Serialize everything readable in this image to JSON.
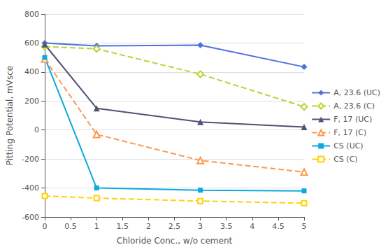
{
  "chart_data": {
    "type": "line",
    "xlabel": "Chloride Conc., w/o cement",
    "ylabel": "Pitting Potential, mVsce",
    "xlim": [
      0,
      5
    ],
    "ylim": [
      -600,
      800
    ],
    "xticks": [
      0,
      0.5,
      1,
      1.5,
      2,
      2.5,
      3,
      3.5,
      4,
      4.5,
      5
    ],
    "yticks": [
      -600,
      -400,
      -200,
      0,
      200,
      400,
      600,
      800
    ],
    "grid": true,
    "legend": "right",
    "series": [
      {
        "name": "A, 23.6 (UC)",
        "x": [
          0,
          1,
          3,
          5
        ],
        "values": [
          600,
          580,
          585,
          435
        ],
        "marker": "diamond",
        "line_style": "solid"
      },
      {
        "name": "A, 23.6 (C)",
        "x": [
          0,
          1,
          3,
          5
        ],
        "values": [
          575,
          560,
          385,
          160
        ],
        "marker": "open_diamond",
        "line_style": "dashed"
      },
      {
        "name": "F, 17 (UC)",
        "x": [
          0,
          1,
          3,
          5
        ],
        "values": [
          590,
          150,
          55,
          20
        ],
        "marker": "triangle",
        "line_style": "solid"
      },
      {
        "name": "F, 17 (C)",
        "x": [
          0,
          1,
          3,
          5
        ],
        "values": [
          490,
          -30,
          -210,
          -290
        ],
        "marker": "open_triangle",
        "line_style": "dashed"
      },
      {
        "name": "CS (UC)",
        "x": [
          0,
          1,
          3,
          5
        ],
        "values": [
          500,
          -400,
          -415,
          -420
        ],
        "marker": "square",
        "line_style": "solid"
      },
      {
        "name": "CS (C)",
        "x": [
          0,
          1,
          3,
          5
        ],
        "values": [
          -455,
          -470,
          -490,
          -505
        ],
        "marker": "open_square",
        "line_style": "dashed"
      }
    ]
  }
}
